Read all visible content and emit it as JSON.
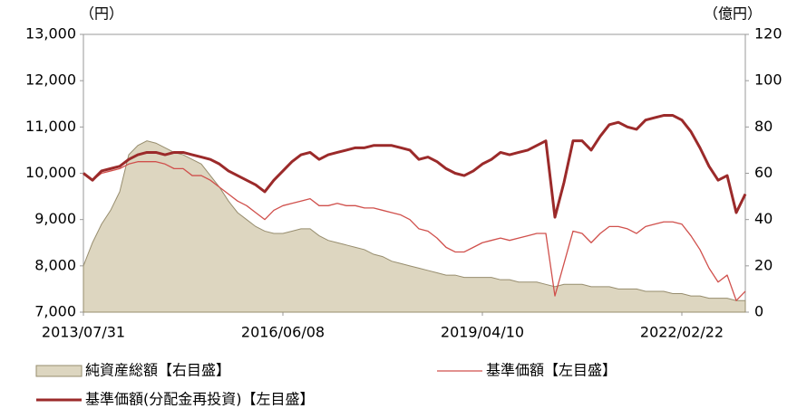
{
  "chart_data": {
    "type": "line",
    "y_label": "（円）",
    "y2_label": "（億円）",
    "categories": [
      "2013/07/31",
      null,
      null,
      null,
      null,
      null,
      null,
      null,
      null,
      null,
      null,
      null,
      null,
      null,
      null,
      null,
      null,
      null,
      null,
      null,
      null,
      null,
      "2016/06/08",
      null,
      null,
      null,
      null,
      null,
      null,
      null,
      null,
      null,
      null,
      null,
      null,
      null,
      null,
      null,
      null,
      null,
      null,
      null,
      null,
      null,
      "2019/04/10",
      null,
      null,
      null,
      null,
      null,
      null,
      null,
      null,
      null,
      null,
      null,
      null,
      null,
      null,
      null,
      null,
      null,
      null,
      null,
      null,
      null,
      "2022/02/22",
      null,
      null,
      null,
      null,
      null,
      null,
      null
    ],
    "ylim": [
      7000,
      13000
    ],
    "yticks": [
      {
        "value": 7000,
        "label": "7,000"
      },
      {
        "value": 8000,
        "label": "8,000"
      },
      {
        "value": 9000,
        "label": "9,000"
      },
      {
        "value": 10000,
        "label": "10,000"
      },
      {
        "value": 11000,
        "label": "11,000"
      },
      {
        "value": 12000,
        "label": "12,000"
      },
      {
        "value": 13000,
        "label": "13,000"
      }
    ],
    "y2lim": [
      0,
      120
    ],
    "y2ticks": [
      0,
      20,
      40,
      60,
      80,
      100,
      120
    ],
    "series": [
      {
        "name": "純資産総額【右目盛】",
        "type": "area",
        "axis": "y2",
        "color": "#ddd6c0",
        "edge_color": "#978d6e",
        "values": [
          20,
          30,
          38,
          44,
          52,
          68,
          72,
          74,
          73,
          71,
          69,
          68,
          66,
          64,
          59,
          54,
          48,
          43,
          40,
          37,
          35,
          34,
          34,
          35,
          36,
          36,
          33,
          31,
          30,
          29,
          28,
          27,
          25,
          24,
          22,
          21,
          20,
          19,
          18,
          17,
          16,
          16,
          15,
          15,
          15,
          15,
          14,
          14,
          13,
          13,
          13,
          12,
          11,
          12,
          12,
          12,
          11,
          11,
          11,
          10,
          10,
          10,
          9,
          9,
          9,
          8,
          8,
          7,
          7,
          6,
          6,
          6,
          5,
          5
        ]
      },
      {
        "name": "基準価額【左目盛】",
        "type": "line",
        "color": "#d0504c",
        "width": 1.3,
        "values": [
          10000,
          9850,
          10000,
          10050,
          10100,
          10200,
          10250,
          10250,
          10250,
          10200,
          10100,
          10100,
          9950,
          9950,
          9850,
          9700,
          9550,
          9400,
          9300,
          9150,
          9000,
          9200,
          9300,
          9350,
          9400,
          9450,
          9300,
          9300,
          9350,
          9300,
          9300,
          9250,
          9250,
          9200,
          9150,
          9100,
          9000,
          8800,
          8750,
          8600,
          8400,
          8300,
          8300,
          8400,
          8500,
          8550,
          8600,
          8550,
          8600,
          8650,
          8700,
          8700,
          7350,
          8050,
          8750,
          8700,
          8500,
          8700,
          8850,
          8850,
          8800,
          8700,
          8850,
          8900,
          8950,
          8950,
          8900,
          8650,
          8350,
          7950,
          7650,
          7800,
          7250,
          7450
        ]
      },
      {
        "name": "基準価額(分配金再投資)【左目盛】",
        "type": "line",
        "color": "#9b2a2a",
        "width": 3,
        "values": [
          10000,
          9850,
          10050,
          10100,
          10150,
          10300,
          10400,
          10450,
          10450,
          10400,
          10450,
          10450,
          10400,
          10350,
          10300,
          10200,
          10050,
          9950,
          9850,
          9750,
          9600,
          9850,
          10050,
          10250,
          10400,
          10450,
          10300,
          10400,
          10450,
          10500,
          10550,
          10550,
          10600,
          10600,
          10600,
          10550,
          10500,
          10300,
          10350,
          10250,
          10100,
          10000,
          9950,
          10050,
          10200,
          10300,
          10450,
          10400,
          10450,
          10500,
          10600,
          10700,
          9050,
          9800,
          10700,
          10700,
          10500,
          10800,
          11050,
          11100,
          11000,
          10950,
          11150,
          11200,
          11250,
          11250,
          11150,
          10900,
          10550,
          10150,
          9850,
          9950,
          9150,
          9550
        ]
      }
    ]
  }
}
